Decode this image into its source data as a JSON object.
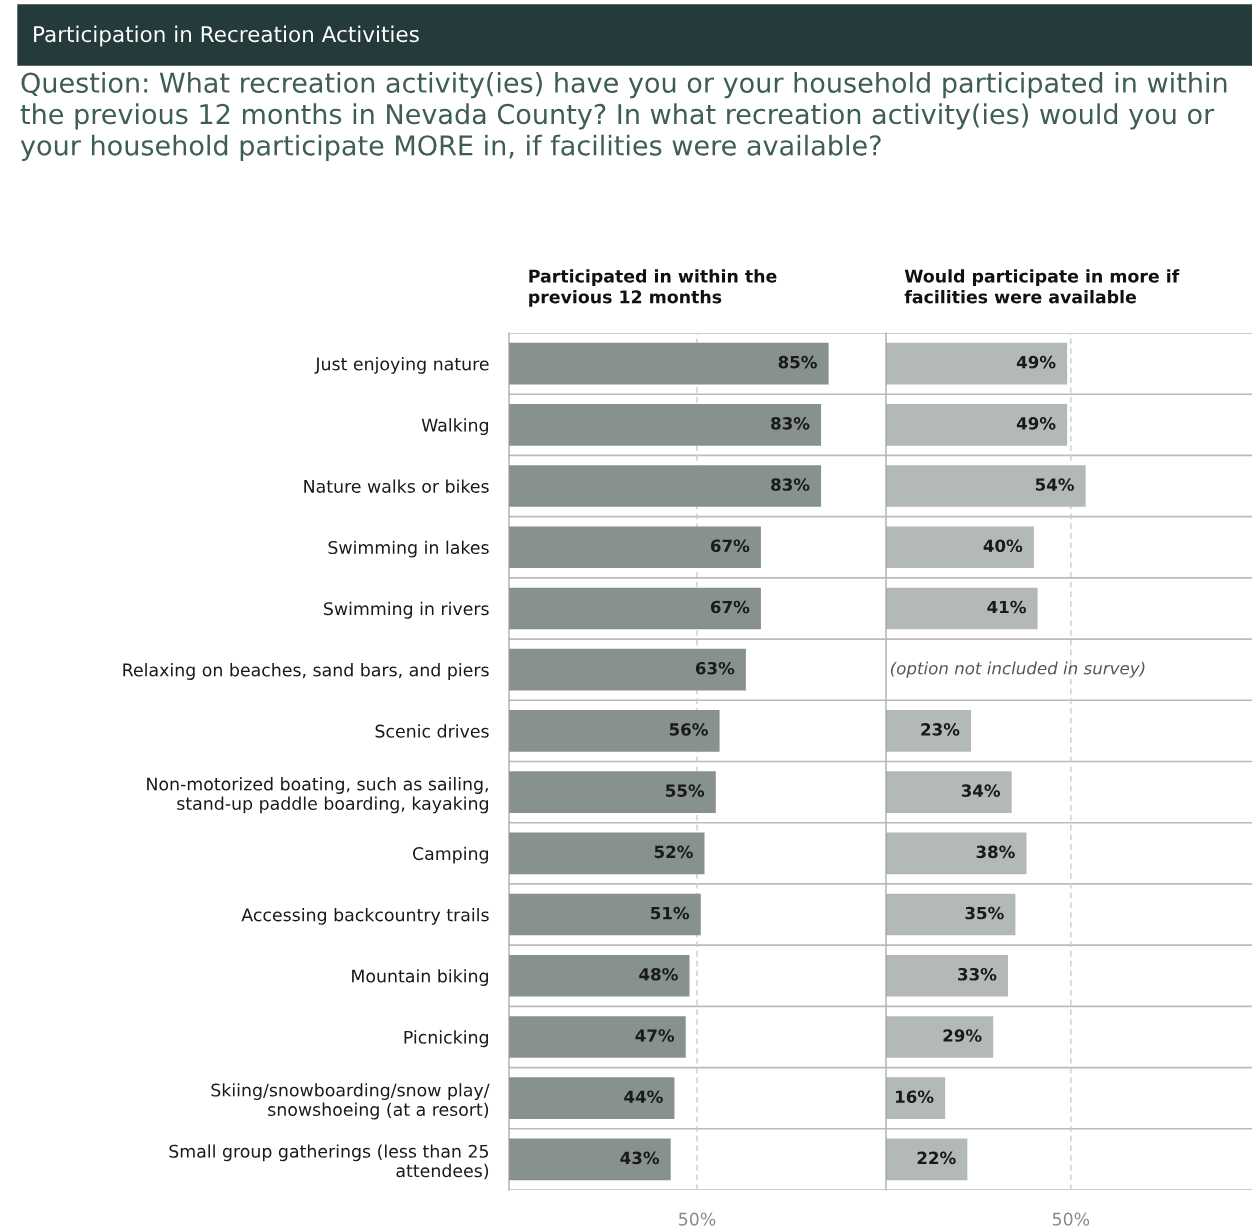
{
  "chart_data": [
    {
      "type": "bar",
      "orientation": "horizontal",
      "title": "Participated in within the\nprevious 12 months",
      "annotations": [
        "Participation in Recreation Activities",
        "Question: What recreation activity(ies) have you or your household participated in within the previous 12 months in Nevada County? In what recreation activity(ies) would you or your household participate MORE in, if facilities were available?"
      ],
      "categories": [
        "Just enjoying nature",
        "Walking",
        "Nature walks or bikes",
        "Swimming in lakes",
        "Swimming in rivers",
        "Relaxing on beaches, sand bars, and piers",
        "Scenic drives",
        "Non-motorized boating, such as sailing,\nstand-up paddle boarding, kayaking",
        "Camping",
        "Accessing backcountry trails",
        "Mountain biking",
        "Picnicking",
        "Skiing/snowboarding/snow play/\nsnowshoeing (at a resort)",
        "Small group gatherings (less than 25\nattendees)"
      ],
      "values": [
        85,
        83,
        83,
        67,
        67,
        63,
        56,
        55,
        52,
        51,
        48,
        47,
        44,
        43
      ],
      "value_labels": [
        "85%",
        "83%",
        "83%",
        "67%",
        "67%",
        "63%",
        "56%",
        "55%",
        "52%",
        "51%",
        "48%",
        "47%",
        "44%",
        "43%"
      ],
      "color": "#87918f",
      "xlim": [
        0,
        100
      ],
      "xticks": [
        {
          "value": 50,
          "label": "50%"
        }
      ],
      "ref_lines": [
        {
          "axis": "x",
          "value": 50,
          "color": "#cccccc",
          "line_style": "dashed"
        }
      ]
    },
    {
      "type": "bar",
      "orientation": "horizontal",
      "title": "Would participate in more if\nfacilities were available",
      "annotations": [
        "(option not included in survey)"
      ],
      "categories": [
        null,
        null,
        null,
        null,
        null,
        null,
        null,
        null,
        null,
        null,
        null,
        null,
        null,
        null
      ],
      "values": [
        49,
        49,
        54,
        40,
        41,
        null,
        23,
        34,
        38,
        35,
        33,
        29,
        16,
        22
      ],
      "value_labels": [
        "49%",
        "49%",
        "54%",
        "40%",
        "41%",
        null,
        "23%",
        "34%",
        "38%",
        "35%",
        "33%",
        "29%",
        "16%",
        "22%"
      ],
      "color": "#b3b8b8",
      "xlim": [
        0,
        99
      ],
      "xticks": [
        {
          "value": 50,
          "label": "50%"
        }
      ],
      "ref_lines": [
        {
          "axis": "x",
          "value": 50,
          "color": "#cccccc",
          "line_style": "dashed"
        }
      ],
      "tick_labels": "x"
    }
  ]
}
